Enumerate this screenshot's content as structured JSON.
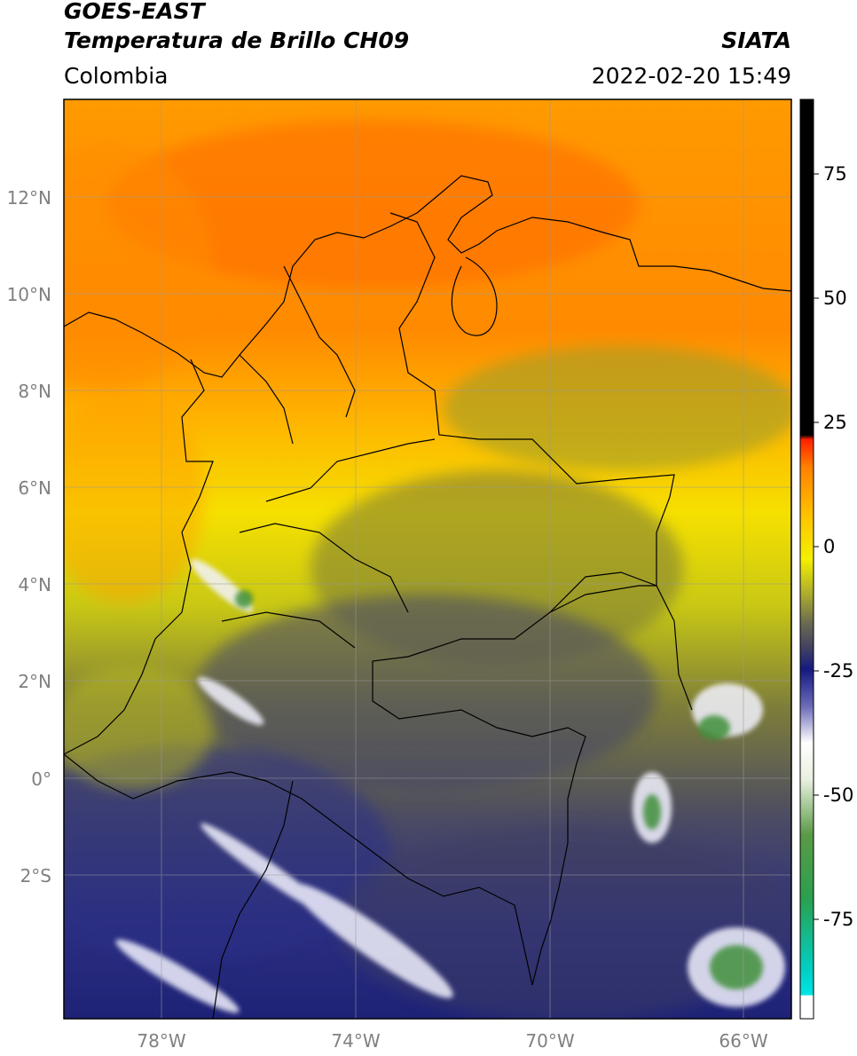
{
  "header": {
    "title_line1": "GOES-EAST",
    "title_line2": "Temperatura de Brillo CH09",
    "organization": "SIATA",
    "region": "Colombia",
    "datetime": "2022-02-20 15:49"
  },
  "map": {
    "lon_labels": [
      "78°W",
      "74°W",
      "70°W",
      "66°W"
    ],
    "lat_labels": [
      "12°N",
      "10°N",
      "8°N",
      "6°N",
      "4°N",
      "2°N",
      "0°",
      "2°S"
    ],
    "colors": {
      "warm_orange": "#ff7a00",
      "orange": "#ff9500",
      "yellow": "#f0f000",
      "olive": "#8f8f2a",
      "gray": "#5a5a58",
      "navy": "#1a1f7a",
      "white": "#f5f5ff",
      "green": "#3f8f3a"
    }
  },
  "colorbar": {
    "tick_labels": [
      "75",
      "50",
      "25",
      "0",
      "-25",
      "-50",
      "-75"
    ],
    "range": [
      -95,
      90
    ],
    "tick_values": [
      75,
      50,
      25,
      0,
      -25,
      -50,
      -75
    ]
  }
}
